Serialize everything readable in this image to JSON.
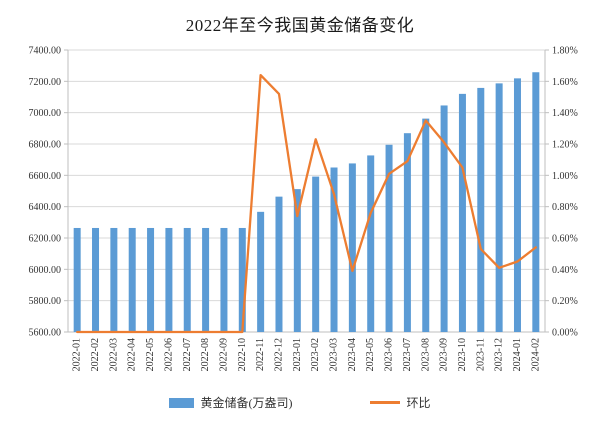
{
  "chart_data": {
    "type": "combo",
    "title": "2022年至今我国黄金储备变化",
    "categories": [
      "2022-01",
      "2022-02",
      "2022-03",
      "2022-04",
      "2022-05",
      "2022-06",
      "2022-07",
      "2022-08",
      "2022-09",
      "2022-10",
      "2022-11",
      "2022-12",
      "2023-01",
      "2023-02",
      "2023-03",
      "2023-04",
      "2023-05",
      "2023-06",
      "2023-07",
      "2023-08",
      "2023-09",
      "2023-10",
      "2023-11",
      "2023-12",
      "2024-01",
      "2024-02"
    ],
    "series": [
      {
        "name": "黄金储备(万盎司)",
        "type": "bar",
        "axis": "left",
        "color": "#5B9BD5",
        "values": [
          6264,
          6264,
          6264,
          6264,
          6264,
          6264,
          6264,
          6264,
          6264,
          6264,
          6367,
          6464,
          6512,
          6592,
          6650,
          6676,
          6727,
          6795,
          6869,
          6962,
          7046,
          7120,
          7158,
          7187,
          7219,
          7258
        ]
      },
      {
        "name": "环比",
        "type": "line",
        "axis": "right",
        "color": "#ED7D31",
        "values": [
          0.0,
          0.0,
          0.0,
          0.0,
          0.0,
          0.0,
          0.0,
          0.0,
          0.0,
          0.0,
          1.64,
          1.52,
          0.74,
          1.23,
          0.88,
          0.39,
          0.76,
          1.01,
          1.09,
          1.35,
          1.21,
          1.05,
          0.53,
          0.41,
          0.45,
          0.54
        ]
      }
    ],
    "left_axis": {
      "min": 5600,
      "max": 7400,
      "step": 200,
      "tick_labels": [
        "7400.00",
        "7200.00",
        "7000.00",
        "6800.00",
        "6600.00",
        "6400.00",
        "6200.00",
        "6000.00",
        "5800.00",
        "5600.00"
      ]
    },
    "right_axis": {
      "min": 0,
      "max": 1.8,
      "step": 0.2,
      "tick_labels": [
        "1.80%",
        "1.60%",
        "1.40%",
        "1.20%",
        "1.00%",
        "0.80%",
        "0.60%",
        "0.40%",
        "0.20%",
        "0.00%"
      ]
    },
    "grid": "horizontal",
    "legend_position": "bottom",
    "colors": {
      "gridline": "#d9d9d9",
      "axis_line": "#bfbfbf",
      "text": "#333333",
      "title_text": "#1a1a1a"
    }
  }
}
